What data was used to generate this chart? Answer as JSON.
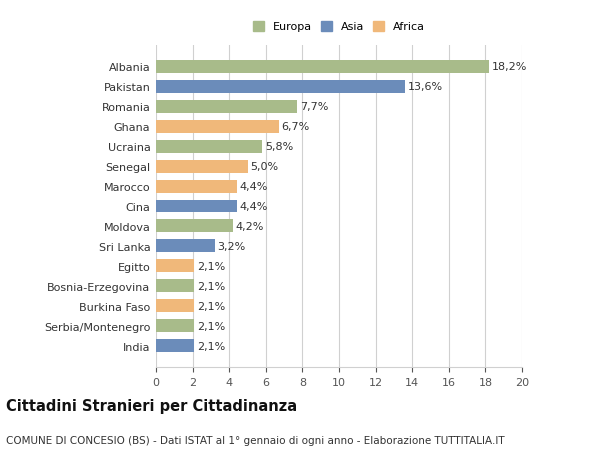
{
  "categories": [
    "India",
    "Serbia/Montenegro",
    "Burkina Faso",
    "Bosnia-Erzegovina",
    "Egitto",
    "Sri Lanka",
    "Moldova",
    "Cina",
    "Marocco",
    "Senegal",
    "Ucraina",
    "Ghana",
    "Romania",
    "Pakistan",
    "Albania"
  ],
  "values": [
    2.1,
    2.1,
    2.1,
    2.1,
    2.1,
    3.2,
    4.2,
    4.4,
    4.4,
    5.0,
    5.8,
    6.7,
    7.7,
    13.6,
    18.2
  ],
  "labels": [
    "2,1%",
    "2,1%",
    "2,1%",
    "2,1%",
    "2,1%",
    "3,2%",
    "4,2%",
    "4,4%",
    "4,4%",
    "5,0%",
    "5,8%",
    "6,7%",
    "7,7%",
    "13,6%",
    "18,2%"
  ],
  "colors": [
    "#6b8cba",
    "#a8bb8a",
    "#f0b87a",
    "#a8bb8a",
    "#f0b87a",
    "#6b8cba",
    "#a8bb8a",
    "#6b8cba",
    "#f0b87a",
    "#f0b87a",
    "#a8bb8a",
    "#f0b87a",
    "#a8bb8a",
    "#6b8cba",
    "#a8bb8a"
  ],
  "legend_labels": [
    "Europa",
    "Asia",
    "Africa"
  ],
  "legend_colors": [
    "#a8bb8a",
    "#6b8cba",
    "#f0b87a"
  ],
  "title": "Cittadini Stranieri per Cittadinanza",
  "subtitle": "COMUNE DI CONCESIO (BS) - Dati ISTAT al 1° gennaio di ogni anno - Elaborazione TUTTITALIA.IT",
  "xlim": [
    0,
    20
  ],
  "xticks": [
    0,
    2,
    4,
    6,
    8,
    10,
    12,
    14,
    16,
    18,
    20
  ],
  "background_color": "#ffffff",
  "grid_color": "#d0d0d0",
  "bar_height": 0.65,
  "label_fontsize": 8.0,
  "ytick_fontsize": 8.0,
  "xtick_fontsize": 8.0,
  "title_fontsize": 10.5,
  "subtitle_fontsize": 7.5
}
